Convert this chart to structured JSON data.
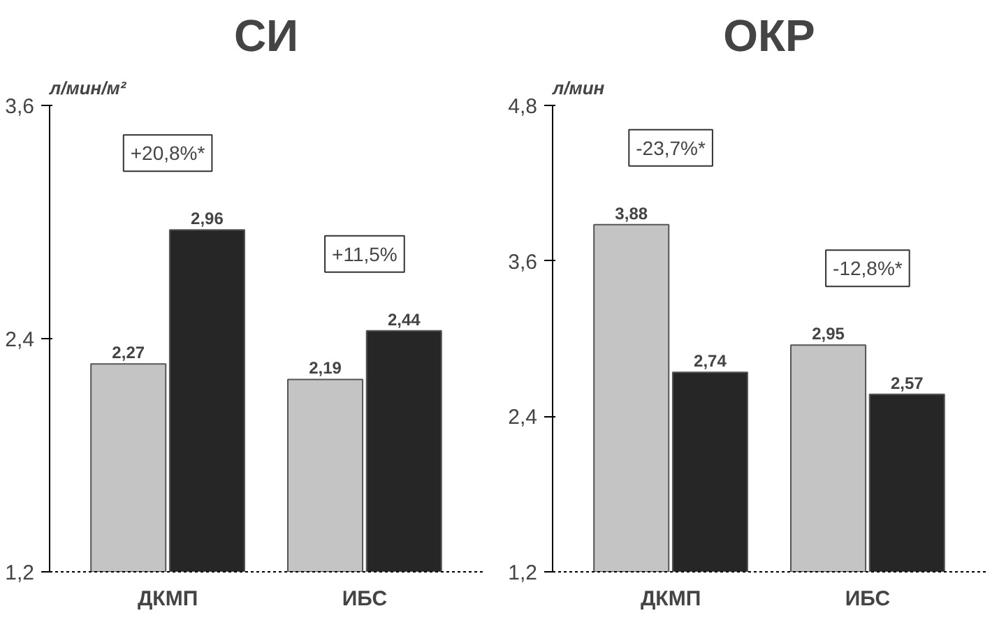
{
  "chart_data": [
    {
      "type": "bar",
      "title": "СИ",
      "ylabel": "л/мин/м²",
      "categories": [
        "ДКМП",
        "ИБС"
      ],
      "ylim": [
        1.2,
        3.6
      ],
      "yticks": [
        {
          "value": 1.2,
          "label": "1,2"
        },
        {
          "value": 2.4,
          "label": "2,4"
        },
        {
          "value": 3.6,
          "label": "3,6"
        }
      ],
      "series": [
        {
          "color": "#c4c4c4",
          "values": [
            2.27,
            2.19
          ],
          "value_labels": [
            "2,27",
            "2,19"
          ]
        },
        {
          "color": "#262626",
          "values": [
            2.96,
            2.44
          ],
          "value_labels": [
            "2,96",
            "2,44"
          ]
        }
      ],
      "annotations": [
        "+20,8%*",
        "+11,5%"
      ],
      "grid": false
    },
    {
      "type": "bar",
      "title": "ОКР",
      "ylabel": "л/мин",
      "categories": [
        "ДКМП",
        "ИБС"
      ],
      "ylim": [
        1.2,
        4.8
      ],
      "yticks": [
        {
          "value": 1.2,
          "label": "1,2"
        },
        {
          "value": 2.4,
          "label": "2,4"
        },
        {
          "value": 3.6,
          "label": "3,6"
        },
        {
          "value": 4.8,
          "label": "4,8"
        }
      ],
      "series": [
        {
          "color": "#c4c4c4",
          "values": [
            3.88,
            2.95
          ],
          "value_labels": [
            "3,88",
            "2,95"
          ]
        },
        {
          "color": "#262626",
          "values": [
            2.74,
            2.57
          ],
          "value_labels": [
            "2,74",
            "2,57"
          ]
        }
      ],
      "annotations": [
        "-23,7%*",
        "-12,8%*"
      ],
      "grid": false
    }
  ]
}
